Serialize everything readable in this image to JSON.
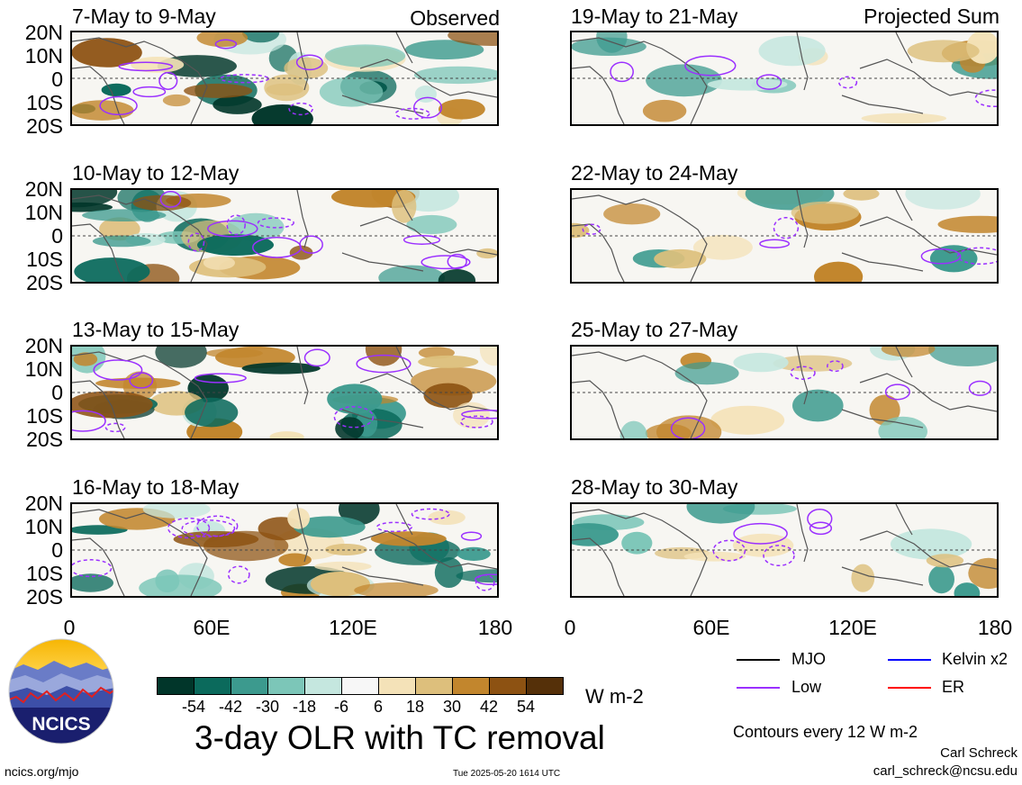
{
  "panels_left": [
    {
      "title": "7-May to 9-May",
      "tag": "Observed"
    },
    {
      "title": "10-May to 12-May",
      "tag": ""
    },
    {
      "title": "13-May to 15-May",
      "tag": ""
    },
    {
      "title": "16-May to 18-May",
      "tag": ""
    }
  ],
  "panels_right": [
    {
      "title": "19-May to 21-May",
      "tag": "Projected Sum"
    },
    {
      "title": "22-May to 24-May",
      "tag": ""
    },
    {
      "title": "25-May to 27-May",
      "tag": ""
    },
    {
      "title": "28-May to 30-May",
      "tag": ""
    }
  ],
  "lat_labels": [
    "20N",
    "10N",
    "0",
    "10S",
    "20S"
  ],
  "lon_labels": [
    "0",
    "60E",
    "120E",
    "180"
  ],
  "colorbar": {
    "ticks": [
      "-54",
      "-42",
      "-30",
      "-18",
      "-6",
      "6",
      "18",
      "30",
      "42",
      "54"
    ],
    "colors": [
      "#01362a",
      "#0b6a5c",
      "#3c9a8e",
      "#7cc6b8",
      "#c5e7df",
      "#f7f7f7",
      "#f4e2b8",
      "#ddbf7c",
      "#c2862d",
      "#8d5212",
      "#553009"
    ],
    "units": "W m-2"
  },
  "legend": {
    "mjo": "MJO",
    "low": "Low",
    "kelvin": "Kelvin x2",
    "er": "ER",
    "colors": {
      "mjo": "#000000",
      "low": "#9b30ff",
      "kelvin": "#0000ff",
      "er": "#ff0000"
    }
  },
  "main_title": "3-day OLR with TC removal",
  "contour_note": "Contours every 12 W m-2",
  "author": "Carl Schreck",
  "email": "carl_schreck@ncsu.edu",
  "site": "ncics.org/mjo",
  "timestamp": "Tue 2025-05-20 1614 UTC",
  "logo_text": "NCICS"
}
